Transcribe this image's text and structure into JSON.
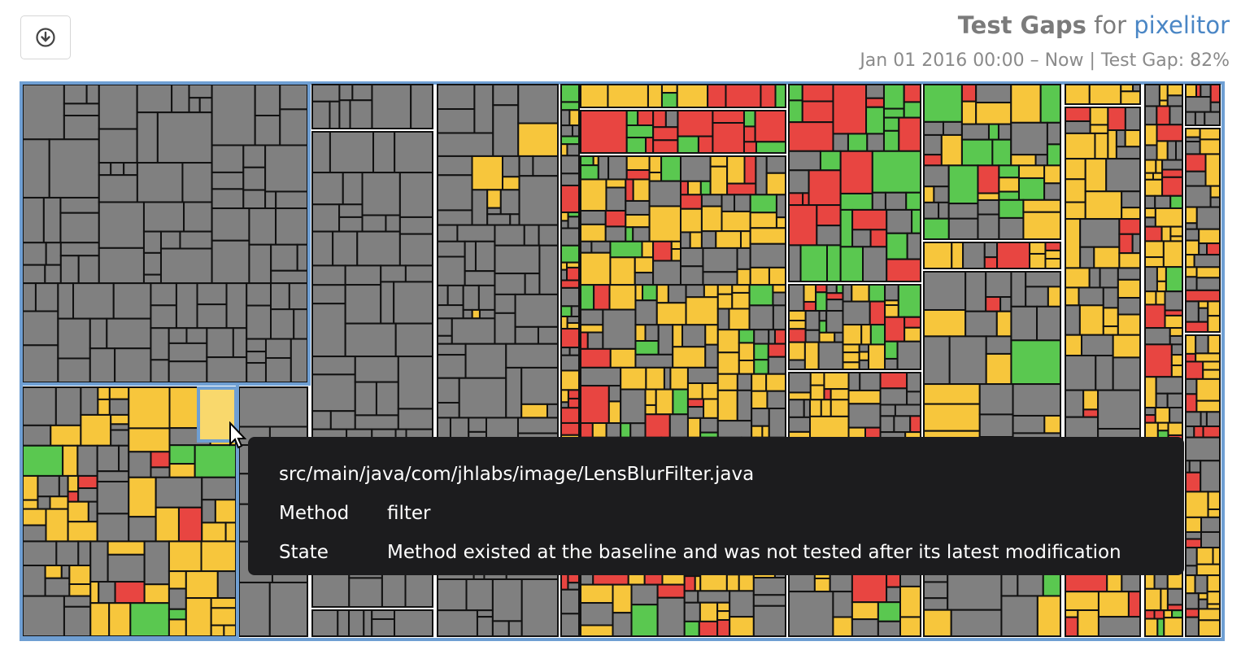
{
  "header": {
    "title_bold": "Test Gaps",
    "title_for": "for",
    "project": "pixelitor",
    "subtitle": "Jan 01 2016 00:00 – Now | Test Gap: 82%"
  },
  "toolbar": {
    "download_icon": "download-circle-icon"
  },
  "colors": {
    "untested_unchanged": "#808080",
    "tested": "#5ac850",
    "modified_untested": "#f7c63c",
    "new_untested": "#e84541",
    "selected": "#f9d86c",
    "frame": "#6f9fd3",
    "package_separator": "#ffffff",
    "tooltip_bg": "#1c1c1e"
  },
  "tooltip": {
    "path": "src/main/java/com/jhlabs/image/LensBlurFilter.java",
    "method_label": "Method",
    "method_value": "filter",
    "state_label": "State",
    "state_value": "Method existed at the baseline and was not tested after its latest modification"
  }
}
